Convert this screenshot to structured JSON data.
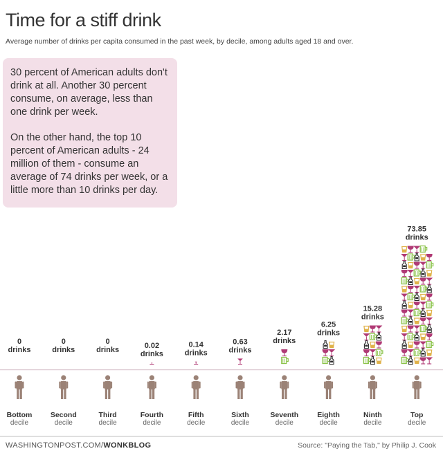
{
  "header": {
    "title": "Time for a stiff drink",
    "subtitle": "Average number of drinks per capita consumed in the past week, by decile, among adults aged 18 and over."
  },
  "callout": {
    "paragraph1": "30 percent of American adults don't drink at all. Another 30 percent consume, on average, less than one drink per week.",
    "paragraph2": "On the other hand, the top 10 percent of American adults - 24 million of them - consume an average of 74 drinks per week, or a little more than 10 drinks per day."
  },
  "footer": {
    "source_site": "WASHINGTONPOST.COM/",
    "source_blog": "WONKBLOG",
    "credit": "Source: \"Paying the Tab,\" by Philip J. Cook"
  },
  "chart_data": {
    "type": "bar",
    "title": "Time for a stiff drink",
    "subtitle": "Average number of drinks per capita consumed in the past week, by decile, among adults aged 18 and over.",
    "unit": "drinks",
    "categories": [
      [
        "Bottom",
        "decile"
      ],
      [
        "Second",
        "decile"
      ],
      [
        "Third",
        "decile"
      ],
      [
        "Fourth",
        "decile"
      ],
      [
        "Fifth",
        "decile"
      ],
      [
        "Sixth",
        "decile"
      ],
      [
        "Seventh",
        "decile"
      ],
      [
        "Eighth",
        "decile"
      ],
      [
        "Ninth",
        "decile"
      ],
      [
        "Top",
        "decile"
      ]
    ],
    "values": [
      0,
      0,
      0,
      0.02,
      0.14,
      0.63,
      2.17,
      6.25,
      15.28,
      73.85
    ],
    "value_labels": [
      "0",
      "0",
      "0",
      "0.02",
      "0.14",
      "0.63",
      "2.17",
      "6.25",
      "15.28",
      "73.85"
    ],
    "colors": {
      "beer": "#8bc34a",
      "wine": "#b03a75",
      "spirits": "#2b2b2b",
      "cocktail": "#b03a75",
      "whiskey": "#e0b24a",
      "person": "#9b8276",
      "baseline": "#d9c4cd"
    },
    "icon_names": [
      "beer-mug-icon",
      "wine-glass-icon",
      "bottle-icon",
      "martini-glass-icon",
      "shot-glass-icon"
    ],
    "legend": "none",
    "grid": false
  }
}
